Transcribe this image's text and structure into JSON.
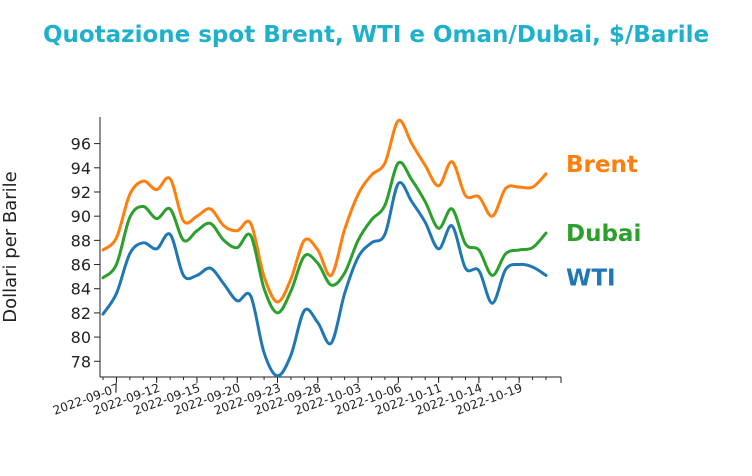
{
  "chart_data": {
    "type": "line",
    "title": "Quotazione spot Brent, WTI e Oman/Dubai, $/Barile",
    "xlabel": "",
    "ylabel": "Dollari per Barile",
    "ylim": [
      76.7,
      98.2
    ],
    "yticks": [
      78,
      80,
      82,
      84,
      86,
      88,
      90,
      92,
      94,
      96
    ],
    "x": [
      "2022-09-06",
      "2022-09-07",
      "2022-09-08",
      "2022-09-09",
      "2022-09-12",
      "2022-09-13",
      "2022-09-14",
      "2022-09-15",
      "2022-09-16",
      "2022-09-19",
      "2022-09-20",
      "2022-09-21",
      "2022-09-22",
      "2022-09-23",
      "2022-09-26",
      "2022-09-27",
      "2022-09-28",
      "2022-09-29",
      "2022-09-30",
      "2022-10-03",
      "2022-10-04",
      "2022-10-05",
      "2022-10-06",
      "2022-10-07",
      "2022-10-10",
      "2022-10-11",
      "2022-10-12",
      "2022-10-13",
      "2022-10-14",
      "2022-10-17",
      "2022-10-18",
      "2022-10-19",
      "2022-10-20",
      "2022-10-21"
    ],
    "xticks": [
      "2022-09-07",
      "2022-09-12",
      "2022-09-15",
      "2022-09-20",
      "2022-09-23",
      "2022-09-28",
      "2022-10-03",
      "2022-10-06",
      "2022-10-11",
      "2022-10-14",
      "2022-10-19"
    ],
    "grid": false,
    "legend": "inline-right",
    "series": [
      {
        "name": "Brent",
        "color": "#ff7f0e",
        "values": [
          87.2,
          88.2,
          91.8,
          92.9,
          92.2,
          93.1,
          89.6,
          90.0,
          90.6,
          89.2,
          88.8,
          89.4,
          85.0,
          82.9,
          84.8,
          88.0,
          87.2,
          85.1,
          88.9,
          91.8,
          93.4,
          94.4,
          97.9,
          96.0,
          94.2,
          92.5,
          94.5,
          91.7,
          91.6,
          90.0,
          92.3,
          92.4,
          92.4,
          93.5
        ]
      },
      {
        "name": "Dubai",
        "color": "#2ca02c",
        "values": [
          84.9,
          86.0,
          89.9,
          90.8,
          89.8,
          90.6,
          88.0,
          88.8,
          89.4,
          88.0,
          87.4,
          88.4,
          84.0,
          82.0,
          83.8,
          86.7,
          86.1,
          84.3,
          85.3,
          88.0,
          89.7,
          90.9,
          94.4,
          93.0,
          91.2,
          89.0,
          90.6,
          87.7,
          87.2,
          85.1,
          86.9,
          87.2,
          87.4,
          88.6
        ]
      },
      {
        "name": "WTI",
        "color": "#1f77b4",
        "values": [
          81.9,
          83.6,
          86.9,
          87.8,
          87.3,
          88.5,
          85.1,
          85.1,
          85.7,
          84.4,
          83.0,
          83.4,
          78.7,
          76.8,
          78.5,
          82.2,
          81.2,
          79.5,
          83.6,
          86.6,
          87.8,
          88.5,
          92.7,
          91.2,
          89.5,
          87.3,
          89.2,
          85.7,
          85.5,
          82.8,
          85.6,
          86.0,
          85.8,
          85.1
        ]
      }
    ]
  }
}
